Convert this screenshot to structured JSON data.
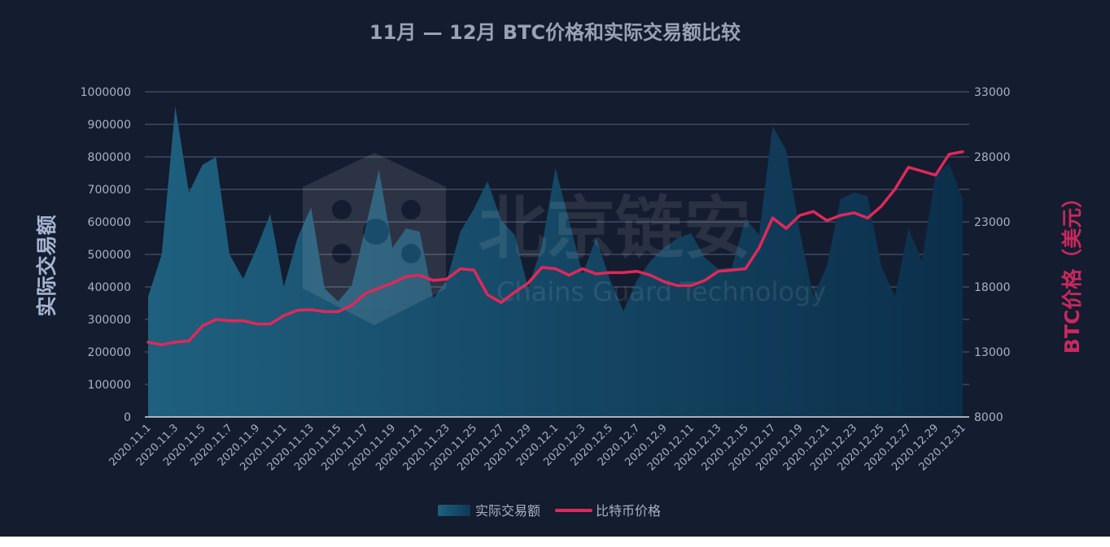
{
  "watermark": {
    "name_cn": "北京链安",
    "name_en": "Chains Guard Technology"
  },
  "chart_data": {
    "type": "area+line",
    "title": "11月 — 12月 BTC价格和实际交易额比较",
    "ylabel_left": "实际交易额",
    "ylabel_right": "BTC价格（美元）",
    "ylim_left": [
      0,
      1000000
    ],
    "ylim_right": [
      8000,
      33000
    ],
    "yticks_left": [
      "0",
      "100000",
      "200000",
      "300000",
      "400000",
      "500000",
      "600000",
      "700000",
      "800000",
      "900000",
      "1000000"
    ],
    "yticks_right": [
      "8000",
      "13000",
      "18000",
      "23000",
      "28000",
      "33000"
    ],
    "grid": true,
    "legend_position": "bottom-center",
    "x": [
      "2020.11.1",
      "2020.11.2",
      "2020.11.3",
      "2020.11.4",
      "2020.11.5",
      "2020.11.6",
      "2020.11.7",
      "2020.11.8",
      "2020.11.9",
      "2020.11.10",
      "2020.11.11",
      "2020.11.12",
      "2020.11.13",
      "2020.11.14",
      "2020.11.15",
      "2020.11.16",
      "2020.11.17",
      "2020.11.18",
      "2020.11.19",
      "2020.11.20",
      "2020.11.21",
      "2020.11.22",
      "2020.11.23",
      "2020.11.24",
      "2020.11.25",
      "2020.11.26",
      "2020.11.27",
      "2020.11.28",
      "2020.11.29",
      "2020.11.30",
      "2020.12.1",
      "2020.12.2",
      "2020.12.3",
      "2020.12.4",
      "2020.12.5",
      "2020.12.6",
      "2020.12.7",
      "2020.12.8",
      "2020.12.9",
      "2020.12.10",
      "2020.12.11",
      "2020.12.12",
      "2020.12.13",
      "2020.12.14",
      "2020.12.15",
      "2020.12.16",
      "2020.12.17",
      "2020.12.18",
      "2020.12.19",
      "2020.12.20",
      "2020.12.21",
      "2020.12.22",
      "2020.12.23",
      "2020.12.24",
      "2020.12.25",
      "2020.12.26",
      "2020.12.27",
      "2020.12.28",
      "2020.12.29",
      "2020.12.30",
      "2020.12.31"
    ],
    "x_tick_labels": [
      "2020.11.1",
      "2020.11.3",
      "2020.11.5",
      "2020.11.7",
      "2020.11.9",
      "2020.11.11",
      "2020.11.13",
      "2020.11.15",
      "2020.11.17",
      "2020.11.19",
      "2020.11.21",
      "2020.11.23",
      "2020.11.25",
      "2020.11.27",
      "2020.11.29",
      "2020.12.1",
      "2020.12.3",
      "2020.12.5",
      "2020.12.7",
      "2020.12.9",
      "2020.12.11",
      "2020.12.13",
      "2020.12.15",
      "2020.12.17",
      "2020.12.19",
      "2020.12.21",
      "2020.12.23",
      "2020.12.25",
      "2020.12.27",
      "2020.12.29",
      "2020.12.31"
    ],
    "series": [
      {
        "name": "实际交易额",
        "type": "area",
        "axis": "left",
        "color": "#1e5f7e",
        "values": [
          370000,
          500000,
          955000,
          690000,
          775000,
          800000,
          500000,
          425000,
          520000,
          625000,
          400000,
          550000,
          645000,
          395000,
          355000,
          405000,
          580000,
          760000,
          520000,
          580000,
          570000,
          365000,
          420000,
          570000,
          640000,
          725000,
          605000,
          560000,
          395000,
          525000,
          765000,
          605000,
          440000,
          550000,
          425000,
          325000,
          420000,
          480000,
          520000,
          550000,
          565000,
          490000,
          455000,
          460000,
          610000,
          560000,
          895000,
          820000,
          570000,
          370000,
          465000,
          670000,
          690000,
          680000,
          465000,
          370000,
          580000,
          480000,
          745000,
          780000,
          670000
        ]
      },
      {
        "name": "比特币价格",
        "type": "line",
        "axis": "right",
        "color": "#e0285a",
        "values": [
          13750,
          13550,
          13750,
          13850,
          15000,
          15500,
          15400,
          15400,
          15150,
          15150,
          15800,
          16200,
          16250,
          16100,
          16100,
          16600,
          17500,
          17900,
          18300,
          18800,
          18900,
          18500,
          18600,
          19400,
          19300,
          17400,
          16800,
          17600,
          18300,
          19500,
          19400,
          18900,
          19400,
          19000,
          19100,
          19100,
          19200,
          18900,
          18400,
          18100,
          18100,
          18500,
          19200,
          19300,
          19400,
          21000,
          23300,
          22500,
          23500,
          23800,
          23100,
          23500,
          23700,
          23300,
          24200,
          25500,
          27200,
          26900,
          26600,
          28200,
          28400
        ]
      }
    ]
  }
}
